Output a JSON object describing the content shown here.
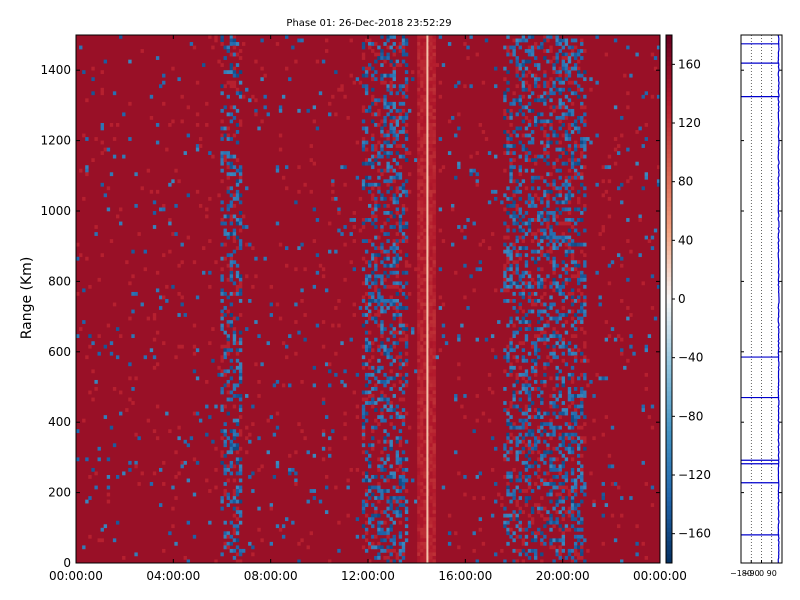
{
  "chart_data": [
    {
      "type": "heatmap",
      "title": "Phase 01: 26-Dec-2018 23:52:29",
      "ylabel": "Range (Km)",
      "xlabel": "",
      "x_ticks": [
        "00:00:00",
        "04:00:00",
        "08:00:00",
        "12:00:00",
        "16:00:00",
        "20:00:00",
        "00:00:00"
      ],
      "x_range_hours": [
        0,
        24
      ],
      "y_ticks": [
        0,
        200,
        400,
        600,
        800,
        1000,
        1200,
        1400
      ],
      "y_range": [
        0,
        1500
      ],
      "colorbar": {
        "ticks": [
          160,
          120,
          80,
          40,
          0,
          -40,
          -80,
          -120,
          -160
        ],
        "range": [
          -180,
          180
        ],
        "colormap": "RdBu_r",
        "colors": [
          "#053061",
          "#2166ac",
          "#4393c3",
          "#92c5de",
          "#f7f7f7",
          "#f4a582",
          "#d6604d",
          "#b2182b",
          "#67001f"
        ]
      },
      "dominant_value": 150,
      "noisy_bands_hours": [
        [
          6.0,
          6.8
        ],
        [
          11.8,
          13.6
        ],
        [
          17.5,
          21.0
        ]
      ],
      "bright_band_hours": [
        14.0,
        14.8
      ],
      "grid": false
    },
    {
      "type": "line",
      "title": "",
      "ylabel": "",
      "xlabel": "",
      "x_ticks": [
        "-180",
        "-90",
        "0",
        "90"
      ],
      "x_range": [
        -180,
        180
      ],
      "y_range": [
        0,
        1500
      ],
      "series_color": "#0000cc",
      "baseline_value": 150,
      "spikes": [
        {
          "range": 80,
          "value": -180
        },
        {
          "range": 228,
          "value": -180
        },
        {
          "range": 282,
          "value": -180
        },
        {
          "range": 292,
          "value": -180
        },
        {
          "range": 470,
          "value": -180
        },
        {
          "range": 585,
          "value": -180
        },
        {
          "range": 1325,
          "value": -180
        },
        {
          "range": 1420,
          "value": -180
        },
        {
          "range": 1475,
          "value": -180
        }
      ],
      "grid": true
    }
  ]
}
